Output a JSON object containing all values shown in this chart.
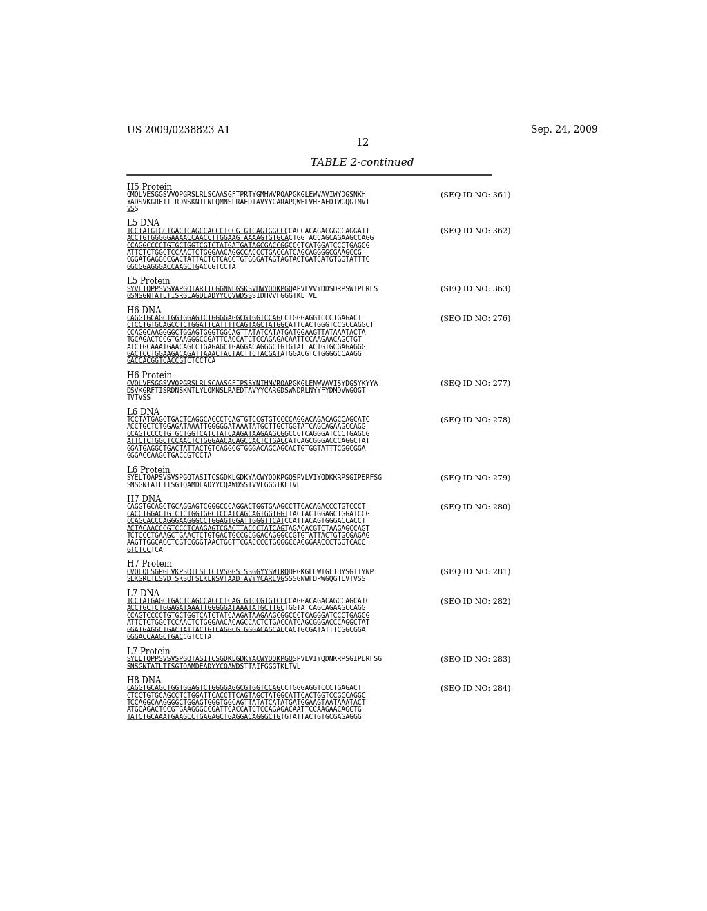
{
  "header_left": "US 2009/0238823 A1",
  "header_right": "Sep. 24, 2009",
  "page_number": "12",
  "table_title": "TABLE 2-continued",
  "background_color": "#ffffff",
  "sections": [
    {
      "label": "H5 Protein",
      "sequence": "QMQLVESGGSVVQPGRSLRLSCAASGFTPRTYGMHWVRQAPGKGLEWVAVIWYDGSNKH\nYADSVKGRFTITRDNSKNTLNLQMNSLRAEDTAVYYCARAPQWELVHEAFDIWGQGTMVT\nVSS",
      "seq_id": "(SEQ ID NO: 361)"
    },
    {
      "label": "L5 DNA",
      "sequence": "TCCTATGTGCTGACTCAGCCACCCTCGGTGTCAGTGGCCCCAGGACAGACGGCCAGGATT\nACCTGTGGGGGAAAACCAACCTTGGAAGTAAAAGTGTGCACTGGTACCAGCAGAAGCCAGG\nCCAGGCCCCTGTGCTGGTCGTCTATGATGATAGCGACCGGCCCTCATGGATCCCTGAGCG\nATTCTCTGGCTCCAACTCTGGGAACAGGCCACCCTGACCATCAGCAGGGGCGAAGCCG\nGGGATGAGGCCGACTATTACTGTCAGGTGTGGGATAGTAGTAGTGATCATGTGGTATTTC\nGGCGGAGGGACCAAGCTGACCGTCCTA",
      "seq_id": "(SEQ ID NO: 362)"
    },
    {
      "label": "L5 Protein",
      "sequence": "SYVLTQPPSVSVAPGQTARITCGGNNLGSKSVHWYQQKPGQAPVLVVYDDSDRPSWIPERFS\nGSNSGNTATLTISRGEAGDEADYYCQVWDSSSIDHVVFGGGTKLTVL",
      "seq_id": "(SEQ ID NO: 363)"
    },
    {
      "label": "H6 DNA",
      "sequence": "CAGGTGCAGCTGGTGGAGTCTGGGGAGGCGTGGTCCAGCCTGGGAGGTCCCTGAGACT\nCTCCTGTGCAGCCTCTGGATTCATTTTCAGTAGCTATGGCATTCACTGGGTCCGCCAGGCT\nCCAGGCAAGGGGCTGGAGTGGGTGGCAGTTATATCATATGATGGAAGTTATAAATACTA\nTGCAGACTCCGTGAAGGGCCGATTCACCATCTCCAGAGACAATTCCAAGAACAGCTGT\nATCTGCAAATGAACAGCCTGAGAGCTGAGGACAGGGCTGTGTATTACTGTGCGAGAGGG\nGACTCCTGGAAGACAGATTAAACTACTACTTCTACGATATGGACGTCTGGGGCCAAGG\nGACCACGGTCACCGTCTCCTCA",
      "seq_id": "(SEQ ID NO: 276)"
    },
    {
      "label": "H6 Protein",
      "sequence": "QVQLVESGGSVVQPGRSLRLSCAASGFIPSSYNIHMVRQAPGKGLENWVAVISYDGSYKYYA\nDSVKGRFTISRDNSKNTLYLQMNSLRAEDTAVYYCARGDSWNDRLNYYFYDMDVWGQGT\nTVTVSS",
      "seq_id": "(SEQ ID NO: 277)"
    },
    {
      "label": "L6 DNA",
      "sequence": "TCCTATGAGCTGACTCAGGCACCCTCAGTGTCCGTGTCCCCAGGACAGACAGCCAGCATC\nACCTGCTCTGGAGATAAATTGGGGGATAAATATGCTTGCTGGTATCAGCAGAAGCCAGG\nCCAGTCCCCTGTGCTGGTCATCTATCAAGATAAGAAGCGGCCCTCAGGGATCCCTGAGCG\nATTCTCTGGCTCCAACTCTGGGAACACAGCCACTCTGACCATCAGCGGGACCCAGGCTAT\nGGATGAGGCTGACTATTACTGTCAGGCGTGGGACAGCAGCACTGTGGTATTTCGGCGGA\nGGGACCAAGCTGACCGTCCTA",
      "seq_id": "(SEQ ID NO: 278)"
    },
    {
      "label": "L6 Protein",
      "sequence": "SYELTQAPSVSVSPGQTASITCSGDKLGDKYACWYQQKPGQSPVLVIYQDKKRPSGIPERFSG\nSNSGNTATLTISGTQAMDEADYYCQAWDSSTVVFGGGTKLTVL",
      "seq_id": "(SEQ ID NO: 279)"
    },
    {
      "label": "H7 DNA",
      "sequence": "CAGGTGCAGCTGCAGGAGTCGGGCCCAGGACTGGTGAAGCCTTCACAGACCCTGTCCCT\nCACCTGGACTGTCTCTGGTGGCTCCATCAGCAGTGGTGGTTACTACTGGAGCTGGATCCG\nCCAGCACCCAGGGAAGGGCCTGGAGTGGATTGGGTTCATCCATTACAGTGGGACCACCT\nACTACAACCCGTCCCTCAAGAGTCGACTTACCCTATCAGTAGACACGTCTAAGAGCCAGT\nTCTCCCTGAAGCTGAACTCTGTGACTGCCGCGGACAGGGCCGTGTATTACTGTGCGAGAG\nAAGTTGGCAGCTCGTCGGGTAACTGGTTCGACCCCTGGGGCCAGGGAACCCTGGTCACC\nGTCTCCTCA",
      "seq_id": "(SEQ ID NO: 280)"
    },
    {
      "label": "H7 Protein",
      "sequence": "QVQLQESGPGLVKPSQTLSLTCTVSGGSISSGGYYSWIRQHPGKGLEWIGFIHYSGTTYNP\nSLKSRLTLSVDTSKSQFSLKLNSVTAADTAVYYCAREVGSSSGNWFDPWGQGTLVTVSS",
      "seq_id": "(SEQ ID NO: 281)"
    },
    {
      "label": "L7 DNA",
      "sequence": "TCCTATGAGCTGACTCAGCCACCCTCAGTGTCCGTGTCCCCAGGACAGACAGCCAGCATC\nACCTGCTCTGGAGATAAATTGGGGGATAAATATGCTTGCTGGTATCAGCAGAAGCCAGG\nCCAGTCCCCTGTGCTGGTCATCTATCAAGATAAGAAGCGGCCCTCAGGGATCCCTGAGCG\nATTCTCTGGCTCCAACTCTGGGAACACAGCCACTCTGACCATCAGCGGGACCCAGGCTAT\nGGATGAGGCTGACTATTACTGTCAGGCGTGGGACAGCACCACTGCGATATTTCGGCGGA\nGGGACCAAGCTGACCGTCCTA",
      "seq_id": "(SEQ ID NO: 282)"
    },
    {
      "label": "L7 Protein",
      "sequence": "SYELTQPPSVSVSPGQTASITCSGDKLGDKYACWYQQKPGQSPVLVIYQDNKRPSGIPERFSG\nSNSGNTATLTISGTQAMDEADYYCQAWDSTTAIFGGGTKLTVL",
      "seq_id": "(SEQ ID NO: 283)"
    },
    {
      "label": "H8 DNA",
      "sequence": "CAGGTGCAGCTGGTGGAGTCTGGGGAGGCGTGGTCCAGCCTGGGAGGTCCCTGAGACT\nCTCCTGTGCAGCCTCTGGATTCACCTTCAGTAGCTATGGCATTCACTGGTCCGCCAGGC\nTCCAGGCAAGGGGCTGGAGTGGGTGGCAGTTATATCATATGATGGAAGTAATAAATACT\nATGCAGACTCCGTGAAGGGCCGATTCACCATCTCCAGAGACAATTCCAAGAACAGCTG\nTATCTGCAAATGAAGCCTGAGAGCTGAGGACAGGGCTGTGTATTACTGTGCGAGAGGG",
      "seq_id": "(SEQ ID NO: 284)"
    }
  ]
}
